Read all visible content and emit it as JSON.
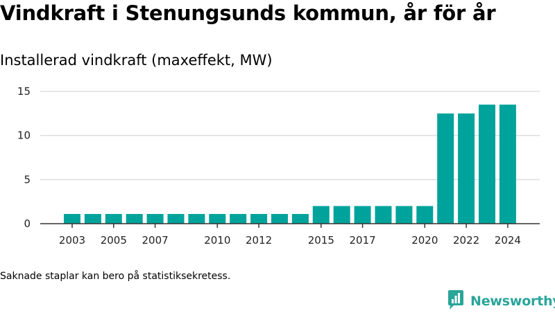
{
  "title": "Vindkraft i Stenungsunds kommun, år för år",
  "footnote": "Saknade staplar kan bero på statistiksekretess.",
  "brand": {
    "name": "Newsworthy",
    "icon": "newsworthy-logo-icon",
    "color": "#2aa59a"
  },
  "colors": {
    "bar": "#00a39b",
    "grid": "#dddddd",
    "axis": "#333333"
  },
  "chart_data": {
    "type": "bar",
    "title": "Vindkraft i Stenungsunds kommun, år för år",
    "subtitle": "Installerad vindkraft (maxeffekt, MW)",
    "categories": [
      "2003",
      "2004",
      "2005",
      "2006",
      "2007",
      "2008",
      "2009",
      "2010",
      "2011",
      "2012",
      "2013",
      "2014",
      "2015",
      "2016",
      "2017",
      "2018",
      "2019",
      "2020",
      "2021",
      "2022",
      "2023",
      "2024"
    ],
    "values": [
      1.1,
      1.1,
      1.1,
      1.1,
      1.1,
      1.1,
      1.1,
      1.1,
      1.1,
      1.1,
      1.1,
      1.1,
      2.0,
      2.0,
      2.0,
      2.0,
      2.0,
      2.0,
      12.5,
      12.5,
      13.5,
      13.5
    ],
    "x_tick_labels": [
      "2003",
      "2005",
      "2007",
      "2010",
      "2012",
      "2015",
      "2017",
      "2020",
      "2022",
      "2024"
    ],
    "y_ticks": [
      0,
      5,
      10,
      15
    ],
    "ylim": [
      0,
      15
    ],
    "xlabel": "",
    "ylabel": "",
    "grid": true,
    "legend": "none"
  }
}
